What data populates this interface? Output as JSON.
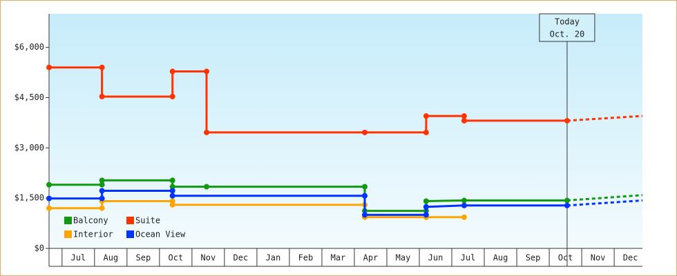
{
  "chart_data": {
    "type": "line",
    "xlim": [
      -0.4,
      17.87
    ],
    "ylim": [
      0,
      7000
    ],
    "xticks": [
      {
        "value": 0.5,
        "label": "Jul"
      },
      {
        "value": 1.5,
        "label": "Aug"
      },
      {
        "value": 2.5,
        "label": "Sep"
      },
      {
        "value": 3.5,
        "label": "Oct"
      },
      {
        "value": 4.5,
        "label": "Nov"
      },
      {
        "value": 5.5,
        "label": "Dec"
      },
      {
        "value": 6.5,
        "label": "Jan"
      },
      {
        "value": 7.5,
        "label": "Feb"
      },
      {
        "value": 8.5,
        "label": "Mar"
      },
      {
        "value": 9.5,
        "label": "Apr"
      },
      {
        "value": 10.5,
        "label": "May"
      },
      {
        "value": 11.5,
        "label": "Jun"
      },
      {
        "value": 12.5,
        "label": "Jul"
      },
      {
        "value": 13.5,
        "label": "Aug"
      },
      {
        "value": 14.5,
        "label": "Sep"
      },
      {
        "value": 15.5,
        "label": "Oct"
      },
      {
        "value": 16.5,
        "label": "Nov"
      },
      {
        "value": 17.5,
        "label": "Dec"
      }
    ],
    "yticks": [
      {
        "value": 0,
        "label": "$0"
      },
      {
        "value": 1500,
        "label": "$1,500"
      },
      {
        "value": 3000,
        "label": "$3,000"
      },
      {
        "value": 4500,
        "label": "$4,500"
      },
      {
        "value": 6000,
        "label": "$6,000"
      }
    ],
    "annotation": {
      "x": 15.55,
      "lines": [
        "Today",
        "Oct. 20"
      ]
    },
    "series": [
      {
        "name": "Balcony",
        "color": "#119911",
        "x": [
          -0.4,
          1.23,
          1.23,
          3.4,
          3.4,
          4.45,
          9.32,
          9.32,
          11.21,
          11.21,
          12.38,
          15.55
        ],
        "values": [
          1900,
          1900,
          2030,
          2030,
          1840,
          1840,
          1840,
          1120,
          1120,
          1410,
          1430,
          1430
        ],
        "forecast": {
          "x": [
            15.55,
            17.87
          ],
          "values": [
            1430,
            1590
          ]
        }
      },
      {
        "name": "Suite",
        "color": "#ff3300",
        "x": [
          -0.4,
          1.23,
          1.23,
          3.4,
          3.4,
          4.45,
          4.45,
          9.32,
          11.21,
          11.21,
          12.38,
          12.38,
          15.55
        ],
        "values": [
          5400,
          5400,
          4530,
          4530,
          5280,
          5280,
          3460,
          3460,
          3460,
          3950,
          3950,
          3810,
          3810
        ],
        "forecast": {
          "x": [
            15.55,
            17.87
          ],
          "values": [
            3810,
            3950
          ]
        }
      },
      {
        "name": "Interior",
        "color": "#ffa500",
        "x": [
          -0.4,
          1.23,
          1.23,
          3.4,
          3.4,
          9.32,
          9.32,
          11.21,
          12.38
        ],
        "values": [
          1200,
          1200,
          1410,
          1410,
          1300,
          1300,
          930,
          930,
          930
        ]
      },
      {
        "name": "Ocean View",
        "color": "#0033ff",
        "x": [
          -0.4,
          1.23,
          1.23,
          3.4,
          3.4,
          9.32,
          9.32,
          11.21,
          11.21,
          12.38,
          15.55
        ],
        "values": [
          1490,
          1490,
          1720,
          1720,
          1570,
          1570,
          1000,
          1000,
          1240,
          1280,
          1280
        ],
        "forecast": {
          "x": [
            15.55,
            17.87
          ],
          "values": [
            1280,
            1430
          ]
        }
      }
    ]
  }
}
